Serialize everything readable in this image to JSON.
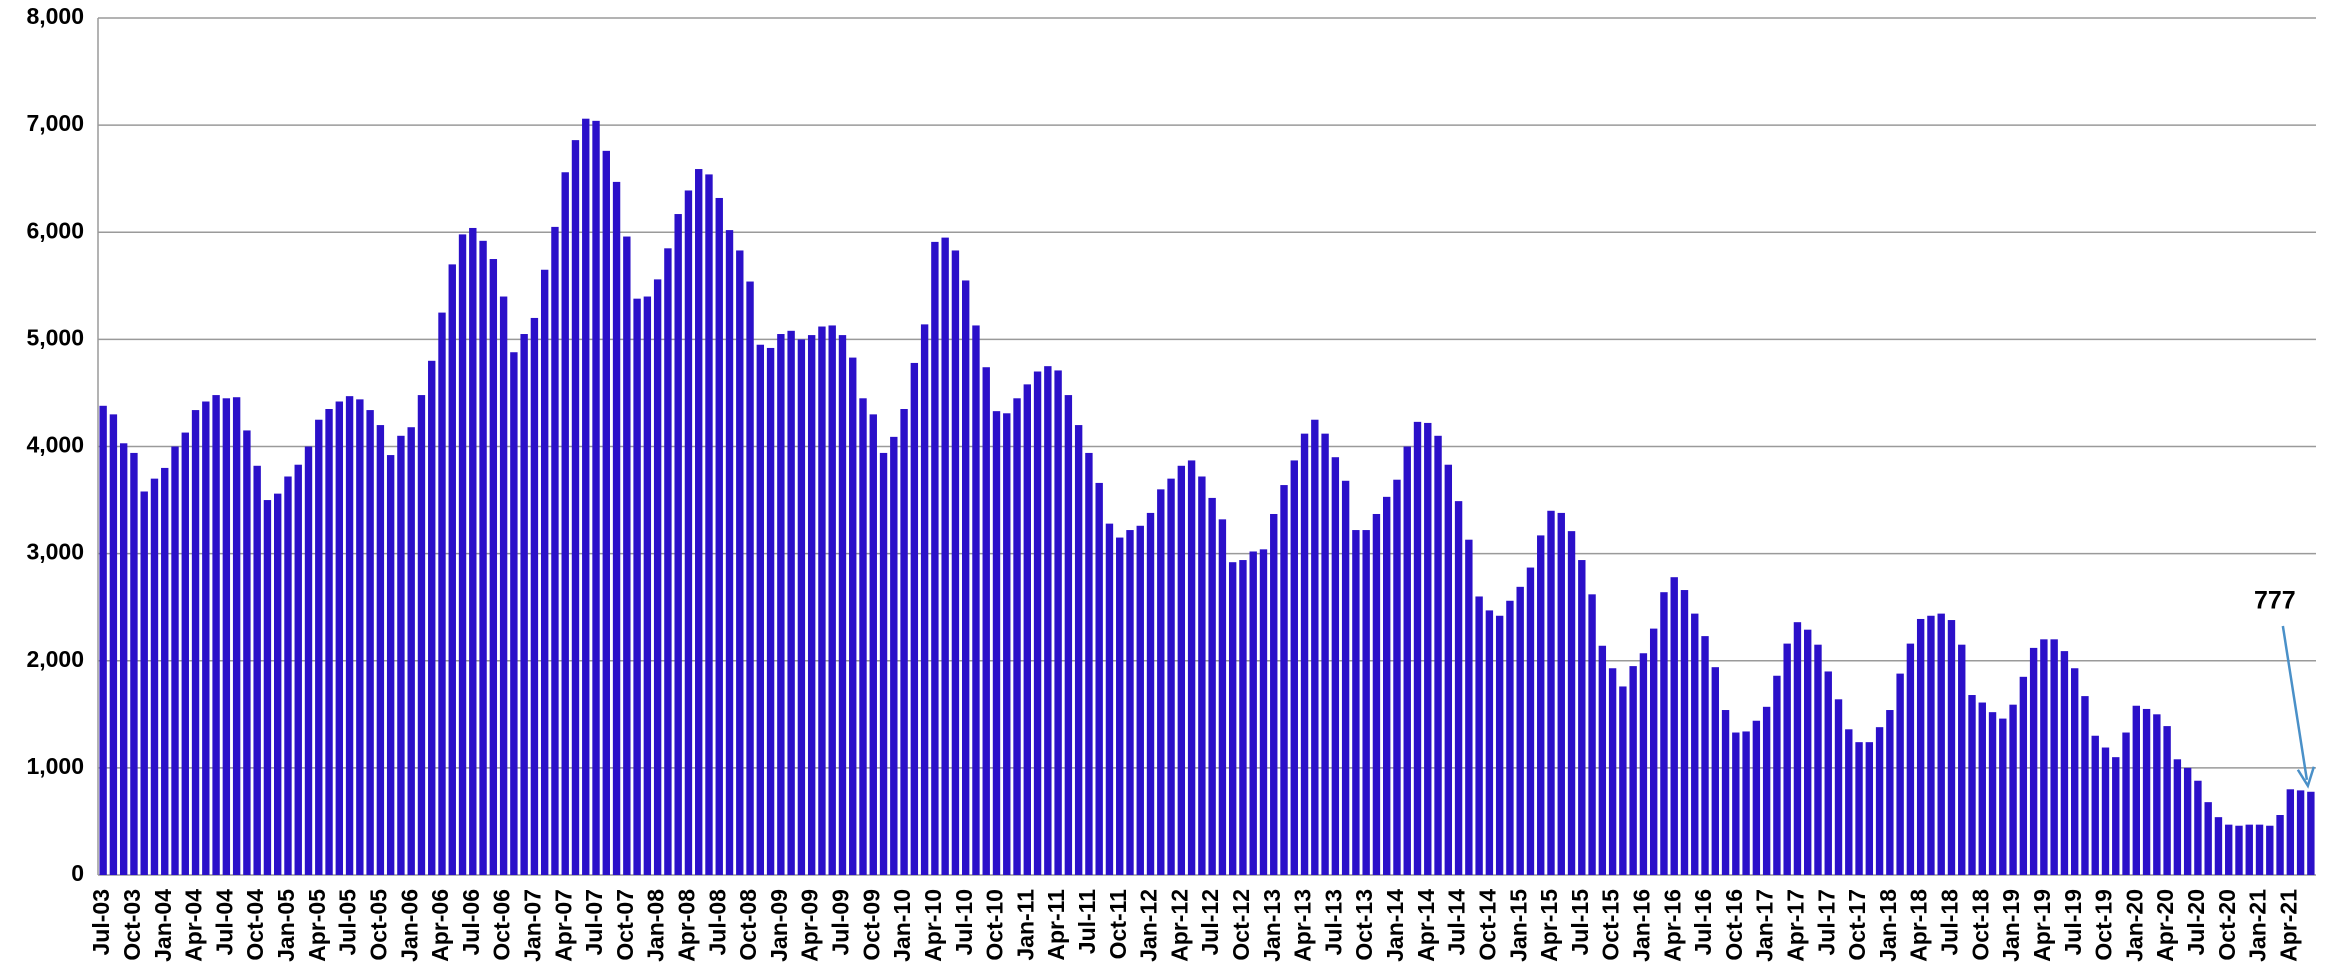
{
  "chart_data": {
    "type": "bar",
    "color": "#2b10c9",
    "grid": true,
    "ylim": [
      0,
      8000
    ],
    "yticks": [
      0,
      {
        "value": 1000,
        "label": "1,000"
      },
      {
        "value": 2000,
        "label": "2,000"
      },
      {
        "value": 3000,
        "label": "3,000"
      },
      {
        "value": 4000,
        "label": "4,000"
      },
      {
        "value": 5000,
        "label": "5,000"
      },
      {
        "value": 6000,
        "label": "6,000"
      },
      {
        "value": 7000,
        "label": "7,000"
      },
      {
        "value": 8000,
        "label": "8,000"
      }
    ],
    "categories": [
      "Jul-03",
      null,
      null,
      "Oct-03",
      null,
      null,
      "Jan-04",
      null,
      null,
      "Apr-04",
      null,
      null,
      "Jul-04",
      null,
      null,
      "Oct-04",
      null,
      null,
      "Jan-05",
      null,
      null,
      "Apr-05",
      null,
      null,
      "Jul-05",
      null,
      null,
      "Oct-05",
      null,
      null,
      "Jan-06",
      null,
      null,
      "Apr-06",
      null,
      null,
      "Jul-06",
      null,
      null,
      "Oct-06",
      null,
      null,
      "Jan-07",
      null,
      null,
      "Apr-07",
      null,
      null,
      "Jul-07",
      null,
      null,
      "Oct-07",
      null,
      null,
      "Jan-08",
      null,
      null,
      "Apr-08",
      null,
      null,
      "Jul-08",
      null,
      null,
      "Oct-08",
      null,
      null,
      "Jan-09",
      null,
      null,
      "Apr-09",
      null,
      null,
      "Jul-09",
      null,
      null,
      "Oct-09",
      null,
      null,
      "Jan-10",
      null,
      null,
      "Apr-10",
      null,
      null,
      "Jul-10",
      null,
      null,
      "Oct-10",
      null,
      null,
      "Jan-11",
      null,
      null,
      "Apr-11",
      null,
      null,
      "Jul-11",
      null,
      null,
      "Oct-11",
      null,
      null,
      "Jan-12",
      null,
      null,
      "Apr-12",
      null,
      null,
      "Jul-12",
      null,
      null,
      "Oct-12",
      null,
      null,
      "Jan-13",
      null,
      null,
      "Apr-13",
      null,
      null,
      "Jul-13",
      null,
      null,
      "Oct-13",
      null,
      null,
      "Jan-14",
      null,
      null,
      "Apr-14",
      null,
      null,
      "Jul-14",
      null,
      null,
      "Oct-14",
      null,
      null,
      "Jan-15",
      null,
      null,
      "Apr-15",
      null,
      null,
      "Jul-15",
      null,
      null,
      "Oct-15",
      null,
      null,
      "Jan-16",
      null,
      null,
      "Apr-16",
      null,
      null,
      "Jul-16",
      null,
      null,
      "Oct-16",
      null,
      null,
      "Jan-17",
      null,
      null,
      "Apr-17",
      null,
      null,
      "Jul-17",
      null,
      null,
      "Oct-17",
      null,
      null,
      "Jan-18",
      null,
      null,
      "Apr-18",
      null,
      null,
      "Jul-18",
      null,
      null,
      "Oct-18",
      null,
      null,
      "Jan-19",
      null,
      null,
      "Apr-19",
      null,
      null,
      "Jul-19",
      null,
      null,
      "Oct-19",
      null,
      null,
      "Jan-20",
      null,
      null,
      "Apr-20",
      null,
      null,
      "Jul-20",
      null,
      null,
      "Oct-20",
      null,
      null,
      "Jan-21",
      null,
      null,
      "Apr-21",
      null,
      null
    ],
    "values": [
      4380,
      4300,
      4030,
      3940,
      3580,
      3700,
      3800,
      4000,
      4130,
      4340,
      4420,
      4480,
      4450,
      4460,
      4150,
      3820,
      3500,
      3560,
      3720,
      3830,
      4000,
      4250,
      4350,
      4420,
      4470,
      4440,
      4340,
      4200,
      3920,
      4100,
      4180,
      4480,
      4800,
      5250,
      5700,
      5980,
      6040,
      5920,
      5750,
      5400,
      4880,
      5050,
      5200,
      5650,
      6050,
      6560,
      6860,
      7060,
      7040,
      6760,
      6470,
      5960,
      5380,
      5400,
      5560,
      5850,
      6170,
      6390,
      6590,
      6540,
      6320,
      6020,
      5830,
      5540,
      4950,
      4920,
      5050,
      5080,
      5000,
      5040,
      5120,
      5130,
      5040,
      4830,
      4450,
      4300,
      3940,
      4090,
      4350,
      4780,
      5140,
      5910,
      5950,
      5830,
      5550,
      5130,
      4740,
      4330,
      4310,
      4450,
      4580,
      4700,
      4750,
      4710,
      4480,
      4200,
      3940,
      3660,
      3280,
      3150,
      3220,
      3260,
      3380,
      3600,
      3700,
      3820,
      3870,
      3720,
      3520,
      3320,
      2920,
      2940,
      3020,
      3040,
      3370,
      3640,
      3870,
      4120,
      4250,
      4120,
      3900,
      3680,
      3220,
      3220,
      3370,
      3530,
      3690,
      4000,
      4230,
      4220,
      4100,
      3830,
      3490,
      3130,
      2600,
      2470,
      2420,
      2560,
      2690,
      2870,
      3170,
      3400,
      3380,
      3210,
      2940,
      2620,
      2140,
      1930,
      1760,
      1950,
      2070,
      2300,
      2640,
      2780,
      2660,
      2440,
      2230,
      1940,
      1540,
      1330,
      1340,
      1440,
      1570,
      1860,
      2160,
      2360,
      2290,
      2150,
      1900,
      1640,
      1360,
      1240,
      1240,
      1380,
      1540,
      1880,
      2160,
      2390,
      2420,
      2440,
      2380,
      2150,
      1680,
      1610,
      1520,
      1460,
      1590,
      1850,
      2120,
      2200,
      2200,
      2090,
      1930,
      1670,
      1300,
      1190,
      1100,
      1330,
      1580,
      1550,
      1500,
      1390,
      1080,
      1000,
      880,
      680,
      540,
      470,
      460,
      470,
      470,
      460,
      560,
      800,
      790,
      777
    ]
  }
}
